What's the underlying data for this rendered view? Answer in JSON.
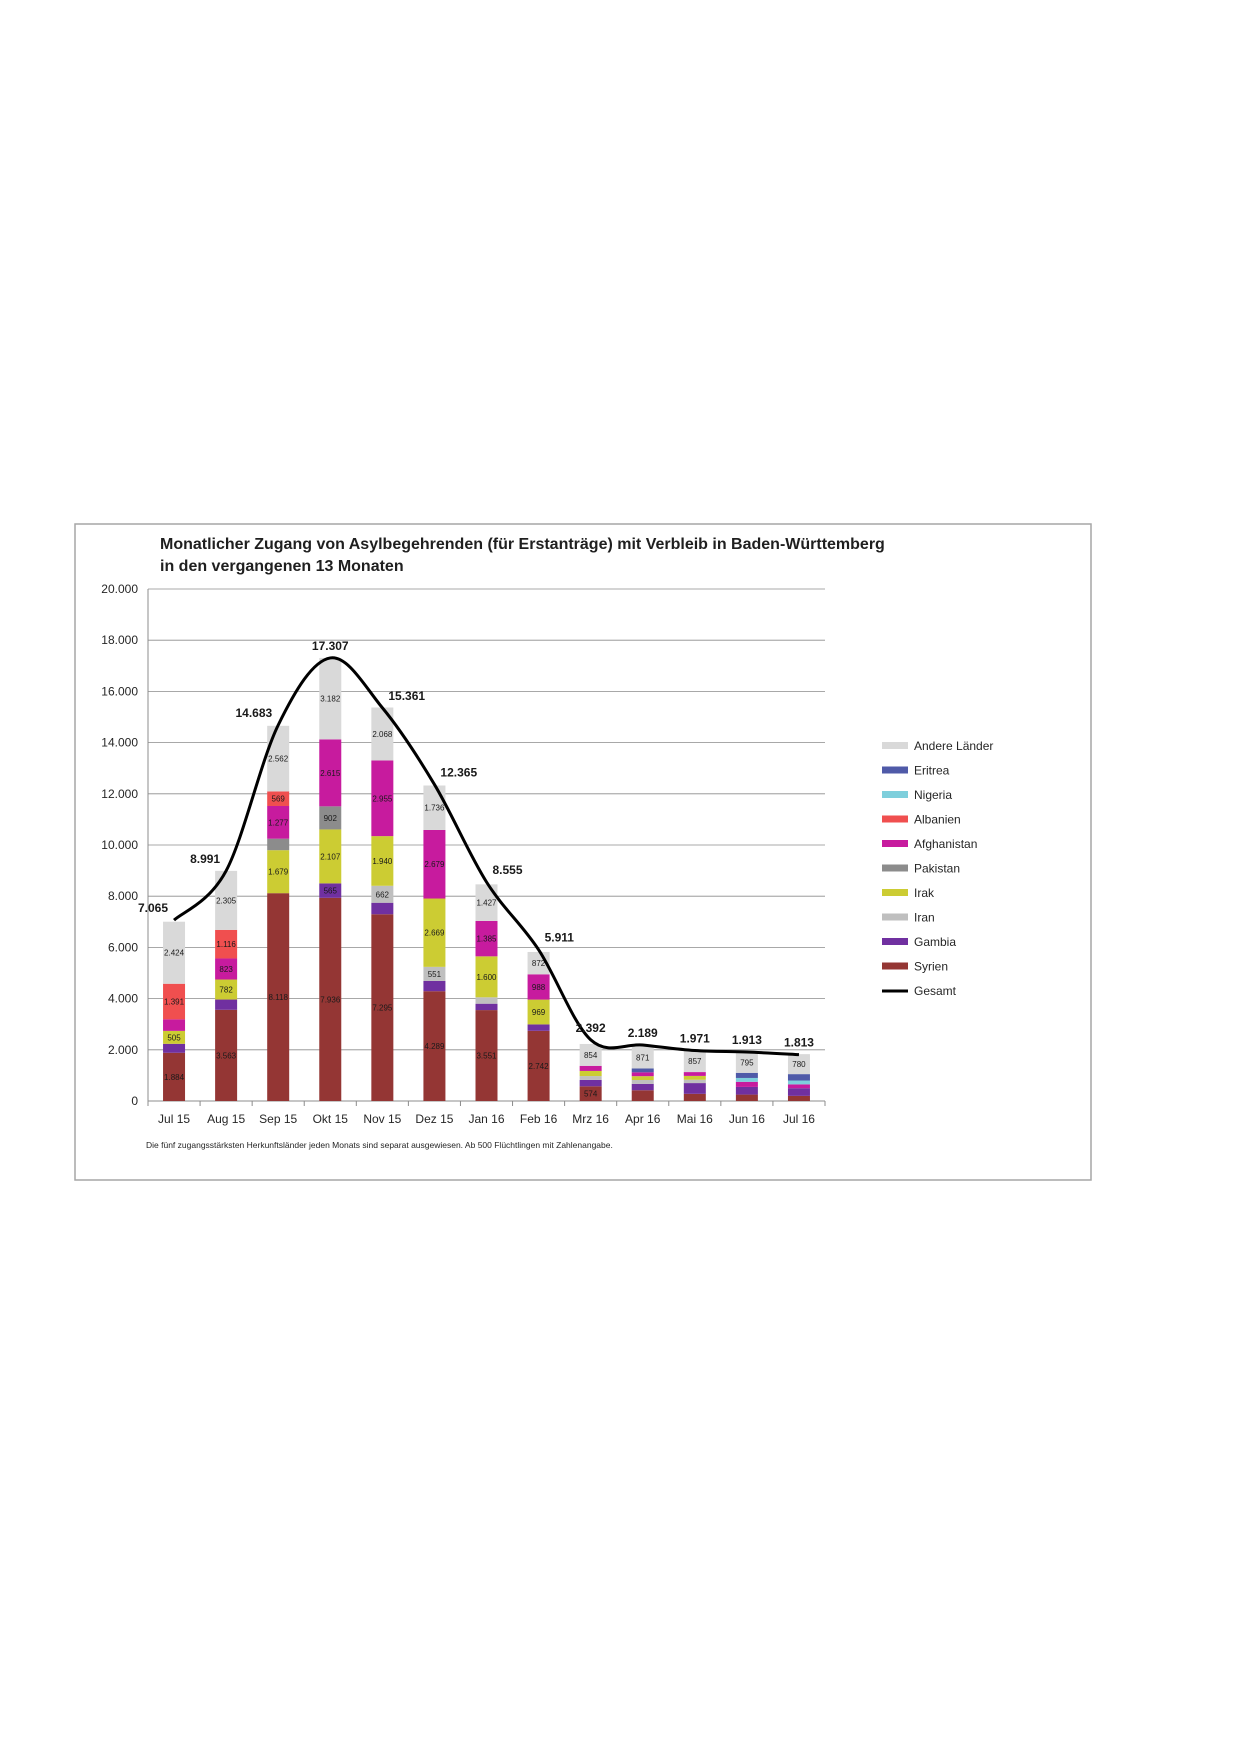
{
  "chart_data": {
    "type": "bar",
    "stacked": true,
    "title_line1": "Monatlicher Zugang von Asylbegehrenden (für Erstanträge) mit Verbleib in Baden-Württemberg",
    "title_line2": "in den vergangenen 13 Monaten",
    "xlabel": "",
    "ylabel": "",
    "ylim": [
      0,
      20000
    ],
    "y_ticks": [
      "0",
      "2.000",
      "4.000",
      "6.000",
      "8.000",
      "10.000",
      "12.000",
      "14.000",
      "16.000",
      "18.000",
      "20.000"
    ],
    "y_tick_values": [
      0,
      2000,
      4000,
      6000,
      8000,
      10000,
      12000,
      14000,
      16000,
      18000,
      20000
    ],
    "grid": true,
    "legend_position": "right",
    "categories": [
      "Jul 15",
      "Aug 15",
      "Sep 15",
      "Okt 15",
      "Nov 15",
      "Dez 15",
      "Jan 16",
      "Feb 16",
      "Mrz 16",
      "Apr 16",
      "Mai 16",
      "Jun 16",
      "Jul 16"
    ],
    "series": [
      {
        "name": "Syrien",
        "color": "#943634",
        "values": [
          1884,
          3563,
          8118,
          7936,
          7295,
          4289,
          3551,
          2742,
          574,
          420,
          280,
          250,
          200
        ],
        "labels": [
          "1.884",
          "3.563",
          "8.118",
          "7.936",
          "7.295",
          "4.289",
          "3.551",
          "2.742",
          "574",
          "",
          "",
          "",
          ""
        ]
      },
      {
        "name": "Gambia",
        "color": "#7030a0",
        "values": [
          350,
          400,
          0,
          565,
          450,
          400,
          250,
          250,
          250,
          250,
          420,
          300,
          300
        ],
        "labels": [
          "",
          "",
          "",
          "565",
          "",
          "",
          "",
          "",
          "",
          "",
          "",
          "",
          ""
        ]
      },
      {
        "name": "Iran",
        "color": "#bfbfbf",
        "values": [
          0,
          0,
          0,
          0,
          662,
          551,
          250,
          0,
          150,
          150,
          130,
          0,
          0
        ],
        "labels": [
          "",
          "",
          "",
          "",
          "662",
          "551",
          "",
          "",
          "",
          "",
          "",
          "",
          ""
        ]
      },
      {
        "name": "Irak",
        "color": "#cccc33",
        "values": [
          505,
          782,
          1679,
          2107,
          1940,
          2669,
          1600,
          969,
          200,
          150,
          150,
          0,
          0
        ],
        "labels": [
          "505",
          "782",
          "1.679",
          "2.107",
          "1.940",
          "2.669",
          "1.600",
          "969",
          "",
          "",
          "",
          "",
          ""
        ]
      },
      {
        "name": "Pakistan",
        "color": "#8c8c8c",
        "values": [
          0,
          0,
          450,
          902,
          0,
          0,
          0,
          0,
          0,
          0,
          0,
          0,
          0
        ],
        "labels": [
          "",
          "",
          "",
          "902",
          "",
          "",
          "",
          "",
          "",
          "",
          "",
          "",
          ""
        ]
      },
      {
        "name": "Afghanistan",
        "color": "#c71b9e",
        "values": [
          450,
          823,
          1277,
          2615,
          2955,
          2679,
          1385,
          988,
          200,
          150,
          150,
          200,
          150
        ],
        "labels": [
          "",
          "823",
          "1.277",
          "2.615",
          "2.955",
          "2.679",
          "1.385",
          "988",
          "",
          "",
          "",
          "",
          ""
        ]
      },
      {
        "name": "Albanien",
        "color": "#f04f4f",
        "values": [
          1391,
          1116,
          569,
          0,
          0,
          0,
          0,
          0,
          0,
          0,
          0,
          0,
          0
        ],
        "labels": [
          "1.391",
          "1.116",
          "569",
          "",
          "",
          "",
          "",
          "",
          "",
          "",
          "",
          "",
          ""
        ]
      },
      {
        "name": "Nigeria",
        "color": "#7ecfdc",
        "values": [
          0,
          0,
          0,
          0,
          0,
          0,
          0,
          0,
          0,
          0,
          0,
          150,
          150
        ],
        "labels": [
          "",
          "",
          "",
          "",
          "",
          "",
          "",
          "",
          "",
          "",
          "",
          "",
          ""
        ]
      },
      {
        "name": "Eritrea",
        "color": "#4f5aa8",
        "values": [
          0,
          0,
          0,
          0,
          0,
          0,
          0,
          0,
          0,
          150,
          0,
          200,
          250
        ],
        "labels": [
          "",
          "",
          "",
          "",
          "",
          "",
          "",
          "",
          "",
          "",
          "",
          "",
          ""
        ]
      },
      {
        "name": "Andere Länder",
        "color": "#d9d9d9",
        "values": [
          2424,
          2305,
          2562,
          3182,
          2068,
          1736,
          1427,
          872,
          854,
          871,
          857,
          795,
          780
        ],
        "labels": [
          "2.424",
          "2.305",
          "2.562",
          "3.182",
          "2.068",
          "1.736",
          "1.427",
          "872",
          "854",
          "871",
          "857",
          "795",
          "780"
        ]
      }
    ],
    "total_series": {
      "name": "Gesamt",
      "color": "#000000",
      "values": [
        7065,
        8991,
        14683,
        17307,
        15361,
        12365,
        8555,
        5911,
        2392,
        2189,
        1971,
        1913,
        1813
      ],
      "labels": [
        "7.065",
        "8.991",
        "14.683",
        "17.307",
        "15.361",
        "12.365",
        "8.555",
        "5.911",
        "2.392",
        "2.189",
        "1.971",
        "1.913",
        "1.813"
      ]
    },
    "footnote": "Die fünf zugangsstärksten Herkunftsländer jeden Monats sind separat ausgewiesen.  Ab 500  Flüchtlingen mit Zahlenangabe."
  }
}
